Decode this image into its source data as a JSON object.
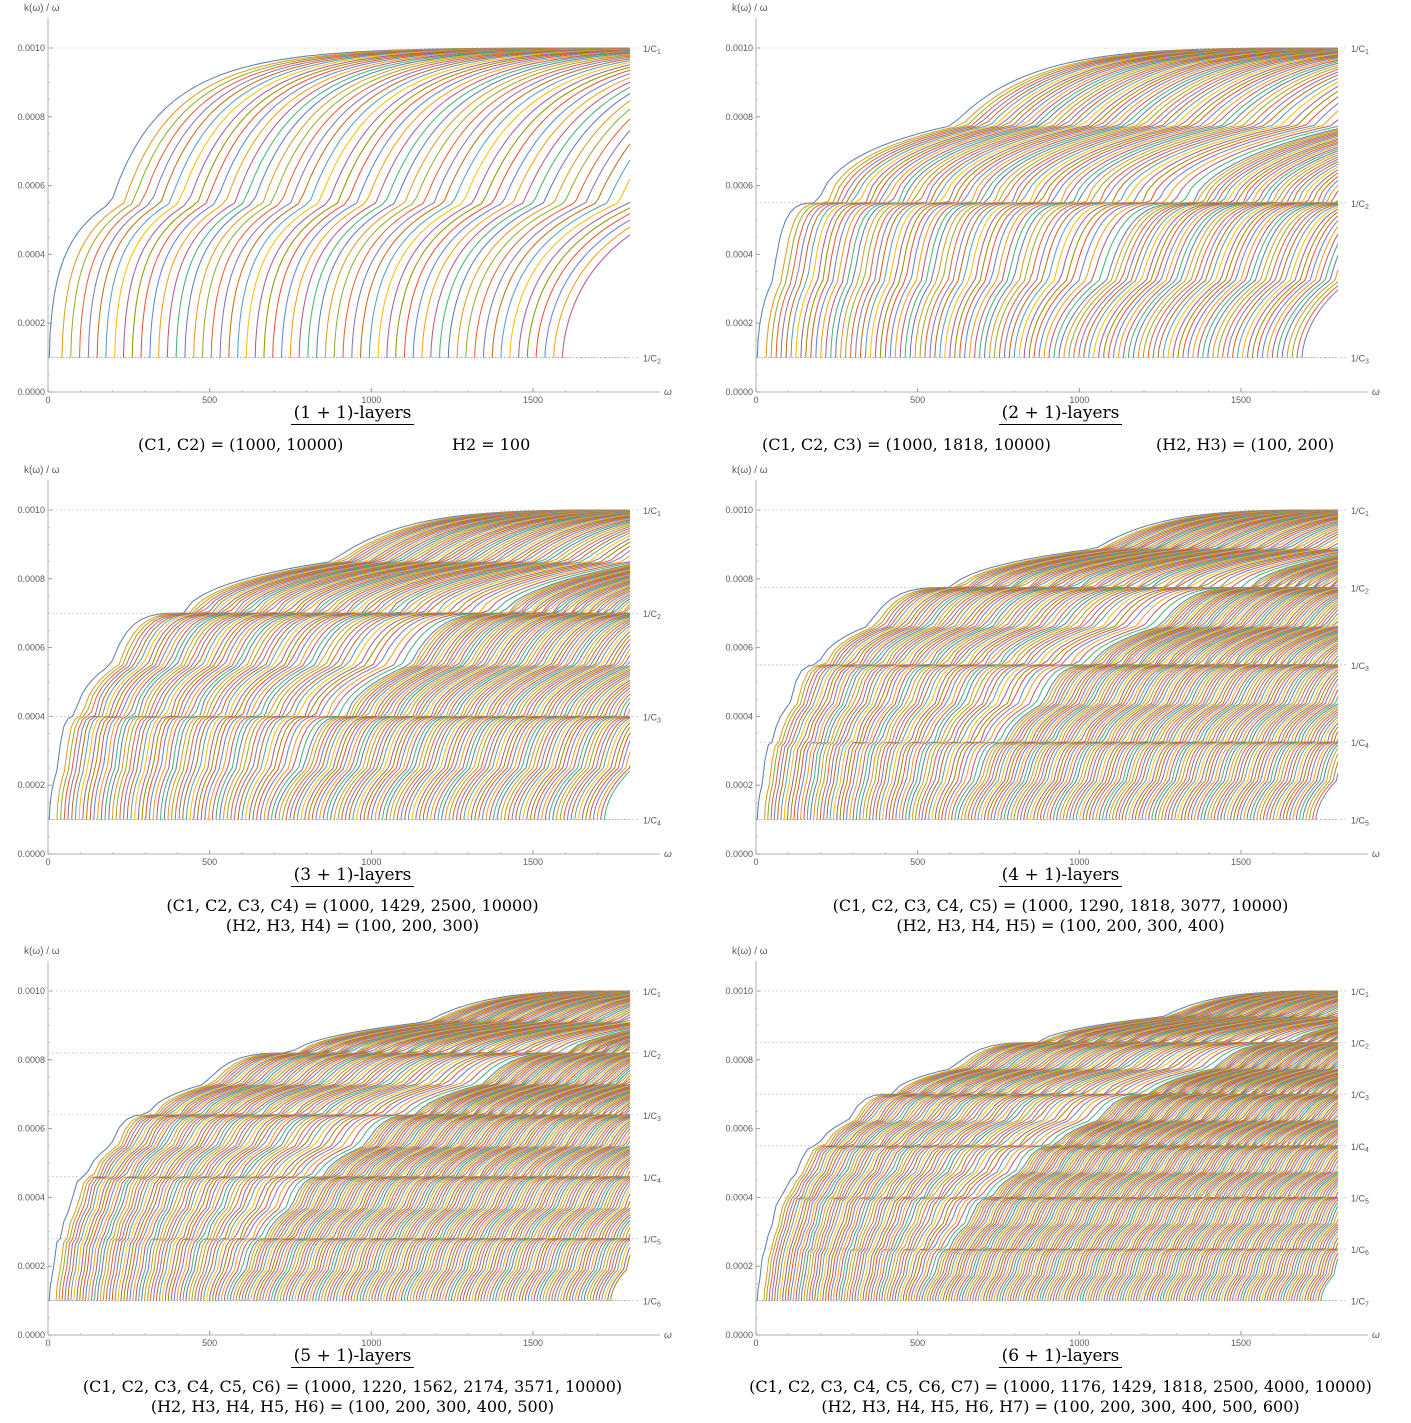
{
  "chart_data": [
    {
      "type": "line",
      "title": "(1 + 1)-layers",
      "params": {
        "C": [
          1000,
          10000
        ],
        "H": [
          100
        ]
      },
      "caption_c": "(C1, C2) = (1000, 10000)",
      "caption_h": "H2 = 100",
      "ylabel": "k(ω) / ω",
      "xlabel": "ω",
      "xlim": [
        0,
        1800
      ],
      "ylim": [
        0,
        0.001
      ],
      "xticks": [
        "0",
        "500",
        "1000",
        "1500"
      ],
      "yticks": [
        "0.0000",
        "0.0002",
        "0.0004",
        "0.0006",
        "0.0008",
        "0.0010"
      ],
      "reference_lines": [
        {
          "label": "1/C1",
          "value": 0.001
        },
        {
          "label": "1/C2",
          "value": 0.0001
        }
      ],
      "mode_count": 59
    },
    {
      "type": "line",
      "title": "(2 + 1)-layers",
      "params": {
        "C": [
          1000,
          1818,
          10000
        ],
        "H": [
          100,
          200
        ]
      },
      "caption_c": "(C1, C2, C3) = (1000, 1818, 10000)",
      "caption_h": "(H2, H3) = (100, 200)",
      "ylabel": "k(ω) / ω",
      "xlabel": "ω",
      "xlim": [
        0,
        1800
      ],
      "ylim": [
        0,
        0.001
      ],
      "xticks": [
        "0",
        "500",
        "1000",
        "1500"
      ],
      "yticks": [
        "0.0000",
        "0.0002",
        "0.0004",
        "0.0006",
        "0.0008",
        "0.0010"
      ],
      "reference_lines": [
        {
          "label": "1/C1",
          "value": 0.001
        },
        {
          "label": "1/C2",
          "value": 0.00055
        },
        {
          "label": "1/C3",
          "value": 0.0001
        }
      ],
      "mode_count": 110
    },
    {
      "type": "line",
      "title": "(3 + 1)-layers",
      "params": {
        "C": [
          1000,
          1429,
          2500,
          10000
        ],
        "H": [
          100,
          200,
          300
        ]
      },
      "caption_c": "(C1, C2, C3, C4) = (1000, 1429, 2500, 10000)",
      "caption_h": "(H2, H3, H4) = (100, 200, 300)",
      "ylabel": "k(ω) / ω",
      "xlabel": "ω",
      "xlim": [
        0,
        1800
      ],
      "ylim": [
        0,
        0.001
      ],
      "xticks": [
        "0",
        "500",
        "1000",
        "1500"
      ],
      "yticks": [
        "0.0000",
        "0.0002",
        "0.0004",
        "0.0006",
        "0.0008",
        "0.0010"
      ],
      "reference_lines": [
        {
          "label": "1/C1",
          "value": 0.001
        },
        {
          "label": "1/C2",
          "value": 0.0007
        },
        {
          "label": "1/C3",
          "value": 0.0004
        },
        {
          "label": "1/C4",
          "value": 0.0001
        }
      ],
      "mode_count": 150
    },
    {
      "type": "line",
      "title": "(4 + 1)-layers",
      "params": {
        "C": [
          1000,
          1290,
          1818,
          3077,
          10000
        ],
        "H": [
          100,
          200,
          300,
          400
        ]
      },
      "caption_c": "(C1, C2, C3, C4, C5) = (1000, 1290, 1818, 3077, 10000)",
      "caption_h": "(H2, H3, H4, H5) = (100, 200, 300, 400)",
      "ylabel": "k(ω) / ω",
      "xlabel": "ω",
      "xlim": [
        0,
        1800
      ],
      "ylim": [
        0,
        0.001
      ],
      "xticks": [
        "0",
        "500",
        "1000",
        "1500"
      ],
      "yticks": [
        "0.0000",
        "0.0002",
        "0.0004",
        "0.0006",
        "0.0008",
        "0.0010"
      ],
      "reference_lines": [
        {
          "label": "1/C1",
          "value": 0.001
        },
        {
          "label": "1/C2",
          "value": 0.000775
        },
        {
          "label": "1/C3",
          "value": 0.00055
        },
        {
          "label": "1/C4",
          "value": 0.000325
        },
        {
          "label": "1/C5",
          "value": 0.0001
        }
      ],
      "mode_count": 170
    },
    {
      "type": "line",
      "title": "(5 + 1)-layers",
      "params": {
        "C": [
          1000,
          1220,
          1562,
          2174,
          3571,
          10000
        ],
        "H": [
          100,
          200,
          300,
          400,
          500
        ]
      },
      "caption_c": "(C1, C2, C3, C4, C5, C6) = (1000, 1220, 1562, 2174, 3571, 10000)",
      "caption_h": "(H2, H3, H4, H5, H6) = (100, 200, 300, 400, 500)",
      "ylabel": "k(ω) / ω",
      "xlabel": "ω",
      "xlim": [
        0,
        1800
      ],
      "ylim": [
        0,
        0.001
      ],
      "xticks": [
        "0",
        "500",
        "1000",
        "1500"
      ],
      "yticks": [
        "0.0000",
        "0.0002",
        "0.0004",
        "0.0006",
        "0.0008",
        "0.0010"
      ],
      "reference_lines": [
        {
          "label": "1/C1",
          "value": 0.001
        },
        {
          "label": "1/C2",
          "value": 0.00082
        },
        {
          "label": "1/C3",
          "value": 0.00064
        },
        {
          "label": "1/C4",
          "value": 0.00046
        },
        {
          "label": "1/C5",
          "value": 0.00028
        },
        {
          "label": "1/C6",
          "value": 0.0001
        }
      ],
      "mode_count": 190
    },
    {
      "type": "line",
      "title": "(6 + 1)-layers",
      "params": {
        "C": [
          1000,
          1176,
          1429,
          1818,
          2500,
          4000,
          10000
        ],
        "H": [
          100,
          200,
          300,
          400,
          500,
          600
        ]
      },
      "caption_c": "(C1, C2, C3, C4, C5, C6, C7) = (1000, 1176, 1429, 1818, 2500, 4000, 10000)",
      "caption_h": "(H2, H3, H4, H5, H6, H7) = (100, 200, 300, 400, 500, 600)",
      "ylabel": "k(ω) / ω",
      "xlabel": "ω",
      "xlim": [
        0,
        1800
      ],
      "ylim": [
        0,
        0.001
      ],
      "xticks": [
        "0",
        "500",
        "1000",
        "1500"
      ],
      "yticks": [
        "0.0000",
        "0.0002",
        "0.0004",
        "0.0006",
        "0.0008",
        "0.0010"
      ],
      "reference_lines": [
        {
          "label": "1/C1",
          "value": 0.001
        },
        {
          "label": "1/C2",
          "value": 0.00085
        },
        {
          "label": "1/C3",
          "value": 0.0007
        },
        {
          "label": "1/C4",
          "value": 0.00055
        },
        {
          "label": "1/C5",
          "value": 0.0004
        },
        {
          "label": "1/C6",
          "value": 0.00025
        },
        {
          "label": "1/C7",
          "value": 0.0001
        }
      ],
      "mode_count": 210
    }
  ],
  "palette": [
    "#5e81b5",
    "#e19c24",
    "#8fb032",
    "#eb6235",
    "#8778b3",
    "#c56e1a",
    "#5d9ec7",
    "#ffbf00",
    "#a5609d",
    "#929600",
    "#e95536",
    "#6685d9",
    "#f89f13",
    "#bc5b80",
    "#47b66d"
  ]
}
